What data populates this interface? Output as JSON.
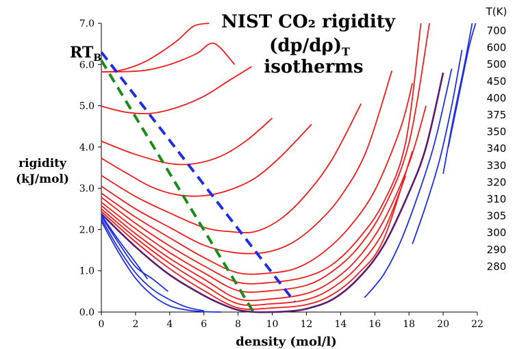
{
  "chart_data": {
    "type": "line",
    "title": "NIST CO₂ rigidity",
    "title_lines": [
      "(dp/dρ)",
      "isotherms"
    ],
    "title_sub": "T",
    "xlabel": "density (mol/l)",
    "ylabel_lines": [
      "rigidity",
      "(kJ/mol)"
    ],
    "xlim": [
      0,
      22
    ],
    "ylim": [
      0,
      7
    ],
    "xticks": [
      "0",
      "2",
      "4",
      "6",
      "8",
      "10",
      "12",
      "14",
      "16",
      "18",
      "20",
      "22"
    ],
    "yticks": [
      "0.0",
      "1.0",
      "2.0",
      "3.0",
      "4.0",
      "5.0",
      "6.0",
      "7.0"
    ],
    "rtb_label": "RT",
    "rtb_sub": "B",
    "temp_header": "T(K)",
    "temperatures": [
      "700",
      "600",
      "500",
      "450",
      "400",
      "375",
      "350",
      "340",
      "330",
      "320",
      "310",
      "305",
      "300",
      "290",
      "280"
    ],
    "colors": {
      "supercritical": "#ee1c1c",
      "critical": "#5c1a6e",
      "subcritical": "#1f2ee0",
      "boyle": "#1f2ee0",
      "zeno": "#1c8a1c"
    },
    "series": [
      {
        "kind": "supercritical",
        "x": [
          0,
          0.9,
          1.8,
          2.7,
          3.6,
          4.5,
          5.4,
          6.3
        ],
        "y": [
          5.82,
          5.84,
          5.94,
          6.1,
          6.33,
          6.6,
          6.93,
          7.0
        ]
      },
      {
        "kind": "supercritical",
        "x": [
          0,
          1.6,
          2.6,
          3.6,
          4.6,
          5.6,
          6.6,
          7.8
        ],
        "y": [
          5.82,
          5.83,
          5.86,
          5.95,
          6.09,
          6.27,
          6.51,
          6.0
        ]
      },
      {
        "kind": "supercritical",
        "x": [
          0,
          1.5,
          3,
          4.5,
          6,
          7.5,
          8.8
        ],
        "y": [
          4.99,
          4.84,
          4.82,
          4.97,
          5.23,
          5.62,
          5.95
        ]
      },
      {
        "kind": "supercritical",
        "x": [
          0,
          2,
          4,
          5.5,
          7,
          8.5,
          10
        ],
        "y": [
          4.14,
          3.82,
          3.6,
          3.6,
          3.78,
          4.16,
          4.7
        ]
      },
      {
        "kind": "supercritical",
        "x": [
          0,
          1.5,
          3,
          4.5,
          6,
          7.5,
          9,
          10.5,
          12.3
        ],
        "y": [
          3.73,
          3.36,
          3.02,
          2.84,
          2.82,
          2.96,
          3.25,
          3.77,
          4.55
        ]
      },
      {
        "kind": "supercritical",
        "x": [
          0,
          2,
          4,
          6,
          7.5,
          9,
          10.5,
          12,
          13.5,
          15.2
        ],
        "y": [
          3.31,
          2.8,
          2.4,
          2.05,
          1.95,
          1.95,
          2.26,
          2.86,
          3.7,
          5.05
        ]
      },
      {
        "kind": "supercritical",
        "x": [
          0,
          2,
          4,
          6,
          7.8,
          9.5,
          11,
          12.5,
          14,
          15.5,
          17
        ],
        "y": [
          3.05,
          2.5,
          2.05,
          1.62,
          1.44,
          1.44,
          1.64,
          2.1,
          2.8,
          3.9,
          5.85
        ]
      },
      {
        "kind": "supercritical",
        "x": [
          0,
          2,
          4,
          6,
          8,
          10,
          11.5,
          13,
          14.5,
          16,
          17.5,
          18.2
        ],
        "y": [
          2.88,
          2.3,
          1.8,
          1.32,
          0.95,
          0.95,
          1.08,
          1.45,
          2.05,
          2.95,
          4.45,
          5.55
        ]
      },
      {
        "kind": "supercritical",
        "x": [
          0,
          2,
          4,
          6,
          8,
          10,
          12,
          13.5,
          15,
          16.5,
          17.8,
          18.7
        ],
        "y": [
          2.78,
          2.15,
          1.6,
          1.12,
          0.72,
          0.72,
          0.86,
          1.15,
          1.75,
          2.65,
          4.1,
          7.0
        ]
      },
      {
        "kind": "supercritical",
        "x": [
          0,
          2,
          4,
          6,
          8,
          10,
          12,
          13.5,
          15,
          16.5,
          18,
          19.2
        ],
        "y": [
          2.66,
          2.02,
          1.44,
          0.95,
          0.52,
          0.52,
          0.65,
          0.98,
          1.55,
          2.5,
          4.1,
          7.0
        ]
      },
      {
        "kind": "supercritical",
        "x": [
          0,
          2,
          4,
          6,
          8,
          10,
          12,
          13.5,
          15,
          16.5,
          18,
          19
        ],
        "y": [
          2.58,
          1.9,
          1.3,
          0.8,
          0.32,
          0.32,
          0.45,
          0.75,
          1.3,
          2.2,
          3.6,
          5.0
        ]
      },
      {
        "kind": "supercritical",
        "x": [
          0,
          2,
          4,
          6,
          8,
          10,
          12,
          13.5,
          15,
          16.5,
          17.8
        ],
        "y": [
          2.5,
          1.8,
          1.18,
          0.66,
          0.2,
          0.2,
          0.3,
          0.58,
          1.1,
          1.95,
          3.3
        ]
      },
      {
        "kind": "supercritical",
        "x": [
          0,
          2,
          4,
          6,
          8,
          10,
          12,
          13.5,
          15,
          16.5,
          18.2
        ],
        "y": [
          2.44,
          1.7,
          1.05,
          0.52,
          0.1,
          0.1,
          0.18,
          0.42,
          0.92,
          1.75,
          3.9
        ]
      },
      {
        "kind": "critical",
        "x": [
          0,
          2,
          4,
          6,
          7,
          8,
          9,
          10,
          11,
          12,
          13.5,
          15,
          16.5,
          18,
          19,
          20
        ],
        "y": [
          2.38,
          1.58,
          0.9,
          0.4,
          0.2,
          0.05,
          0.0,
          0.0,
          0.02,
          0.08,
          0.3,
          0.8,
          1.6,
          2.9,
          4.0,
          5.8
        ]
      },
      {
        "kind": "subcritical",
        "x": [
          0,
          1,
          2,
          2.7
        ],
        "y": [
          2.35,
          1.75,
          1.2,
          0.8
        ]
      },
      {
        "kind": "subcritical",
        "x": [
          0,
          1,
          2,
          3,
          3.9
        ],
        "y": [
          2.32,
          1.68,
          1.1,
          0.8,
          0.5
        ]
      },
      {
        "kind": "subcritical",
        "x": [
          0,
          1,
          2,
          3,
          4,
          5,
          6
        ],
        "y": [
          2.26,
          1.55,
          0.95,
          0.55,
          0.3,
          0.12,
          0.03
        ]
      },
      {
        "kind": "subcritical",
        "x": [
          0,
          1,
          2,
          3,
          4,
          5,
          6,
          7
        ],
        "y": [
          2.2,
          1.45,
          0.82,
          0.4,
          0.15,
          0.05,
          0.01,
          0.0
        ]
      },
      {
        "kind": "subcritical",
        "x": [
          15.4,
          16.5,
          17.5,
          18.5,
          19.5,
          20.5
        ],
        "y": [
          0.35,
          0.9,
          1.7,
          2.8,
          4.1,
          5.9
        ]
      },
      {
        "kind": "subcritical",
        "x": [
          18.2,
          19,
          19.8,
          20.5,
          21.1
        ],
        "y": [
          1.65,
          2.6,
          3.7,
          5.0,
          6.35
        ]
      },
      {
        "kind": "subcritical",
        "x": [
          20.0,
          20.6,
          21.2,
          21.7
        ],
        "y": [
          3.35,
          4.7,
          5.9,
          7.0
        ]
      },
      {
        "kind": "subcritical",
        "x": [
          20.3,
          20.9,
          21.5,
          21.9
        ],
        "y": [
          4.0,
          5.2,
          6.4,
          7.0
        ]
      }
    ],
    "boyle_line": {
      "x": [
        0,
        11.3
      ],
      "y": [
        6.3,
        0.25
      ]
    },
    "zeno_line": {
      "x": [
        0,
        8.9
      ],
      "y": [
        6.1,
        0.0
      ]
    }
  }
}
